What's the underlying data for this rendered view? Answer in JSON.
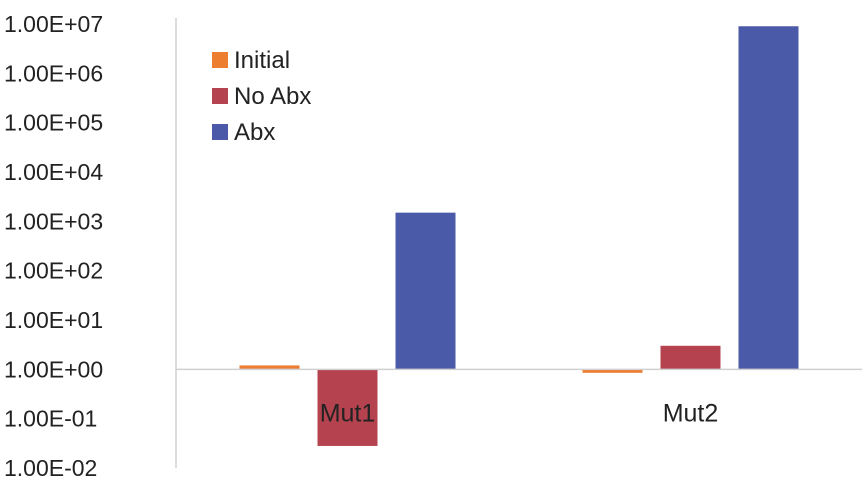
{
  "chart_data": {
    "type": "bar",
    "scale": "log",
    "baseline": 1,
    "ylim": [
      0.01,
      10000000
    ],
    "ytick_labels": [
      "1.00E-02",
      "1.00E-01",
      "1.00E+00",
      "1.00E+01",
      "1.00E+02",
      "1.00E+03",
      "1.00E+04",
      "1.00E+05",
      "1.00E+06",
      "1.00E+07"
    ],
    "ytick_values": [
      0.01,
      0.1,
      1,
      10,
      100,
      1000,
      10000,
      100000,
      1000000,
      10000000
    ],
    "categories": [
      "Mut1",
      "Mut2"
    ],
    "series": [
      {
        "name": "Initial",
        "color": "#ED7D31",
        "values": [
          1.2,
          0.85
        ]
      },
      {
        "name": "No Abx",
        "color": "#B5434F",
        "values": [
          0.028,
          3.0
        ]
      },
      {
        "name": "Abx",
        "color": "#4B5AA8",
        "values": [
          1500,
          9000000
        ]
      }
    ],
    "legend_position": "top-left",
    "grid": false,
    "title": "",
    "xlabel": "",
    "ylabel": ""
  }
}
